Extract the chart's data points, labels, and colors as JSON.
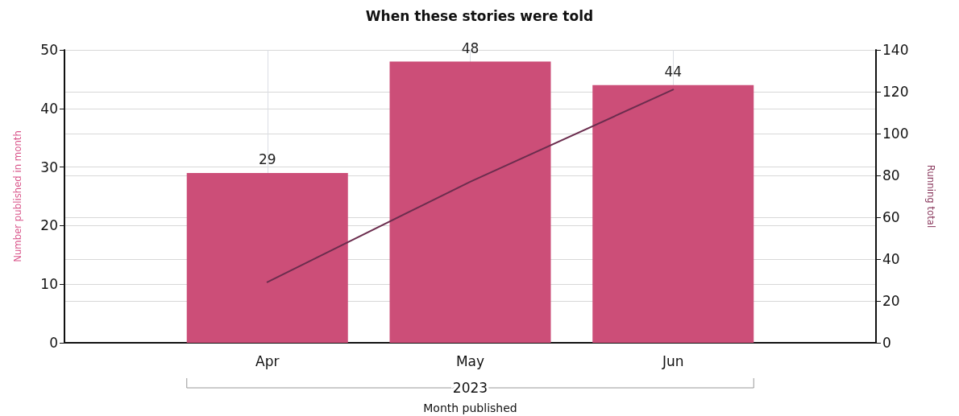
{
  "chart_data": {
    "type": "bar",
    "title": "When these stories were told",
    "xlabel": "Month published",
    "ylabel": "Number published in month",
    "y2label": "Running total",
    "categories": [
      null,
      "Apr",
      "May",
      "Jun",
      null
    ],
    "series": [
      {
        "color": "#cc4e78",
        "values": [
          null,
          29,
          48,
          44,
          null
        ],
        "value_labels": [
          null,
          "29",
          "48",
          "44",
          null
        ]
      },
      {
        "type": "line",
        "axis": "y2",
        "color": "#6b2d4e",
        "values": [
          null,
          29,
          77,
          121,
          null
        ]
      }
    ],
    "annotations": [
      "2023"
    ],
    "ylim": [
      0,
      50
    ],
    "yticks": [
      0,
      10,
      20,
      30,
      40,
      50
    ],
    "y2lim": [
      0,
      140
    ],
    "y2ticks": [
      0,
      20,
      40,
      60,
      80,
      100,
      120,
      140
    ],
    "grid": true,
    "marker": "none",
    "line_style": "solid"
  }
}
